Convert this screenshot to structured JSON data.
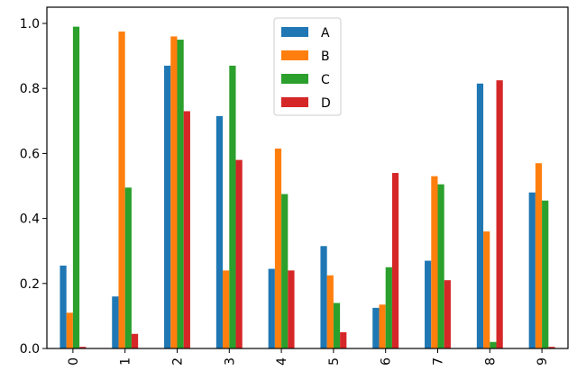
{
  "chart_data": {
    "type": "bar",
    "title": "",
    "xlabel": "",
    "ylabel": "",
    "categories": [
      "0",
      "1",
      "2",
      "3",
      "4",
      "5",
      "6",
      "7",
      "8",
      "9"
    ],
    "ylim": [
      0,
      1.05
    ],
    "yticks": [
      "0.0",
      "0.2",
      "0.4",
      "0.6",
      "0.8",
      "1.0"
    ],
    "grid": false,
    "legend_position": "top-center",
    "series": [
      {
        "name": "A",
        "color": "#1f77b4",
        "values": [
          0.255,
          0.16,
          0.87,
          0.715,
          0.245,
          0.315,
          0.125,
          0.27,
          0.815,
          0.48
        ]
      },
      {
        "name": "B",
        "color": "#ff7f0e",
        "values": [
          0.11,
          0.975,
          0.96,
          0.24,
          0.615,
          0.225,
          0.135,
          0.53,
          0.36,
          0.57
        ]
      },
      {
        "name": "C",
        "color": "#2ca02c",
        "values": [
          0.99,
          0.495,
          0.95,
          0.87,
          0.475,
          0.14,
          0.25,
          0.505,
          0.02,
          0.455
        ]
      },
      {
        "name": "D",
        "color": "#d62728",
        "values": [
          0.005,
          0.045,
          0.73,
          0.58,
          0.24,
          0.05,
          0.54,
          0.21,
          0.825,
          0.005
        ]
      }
    ]
  }
}
